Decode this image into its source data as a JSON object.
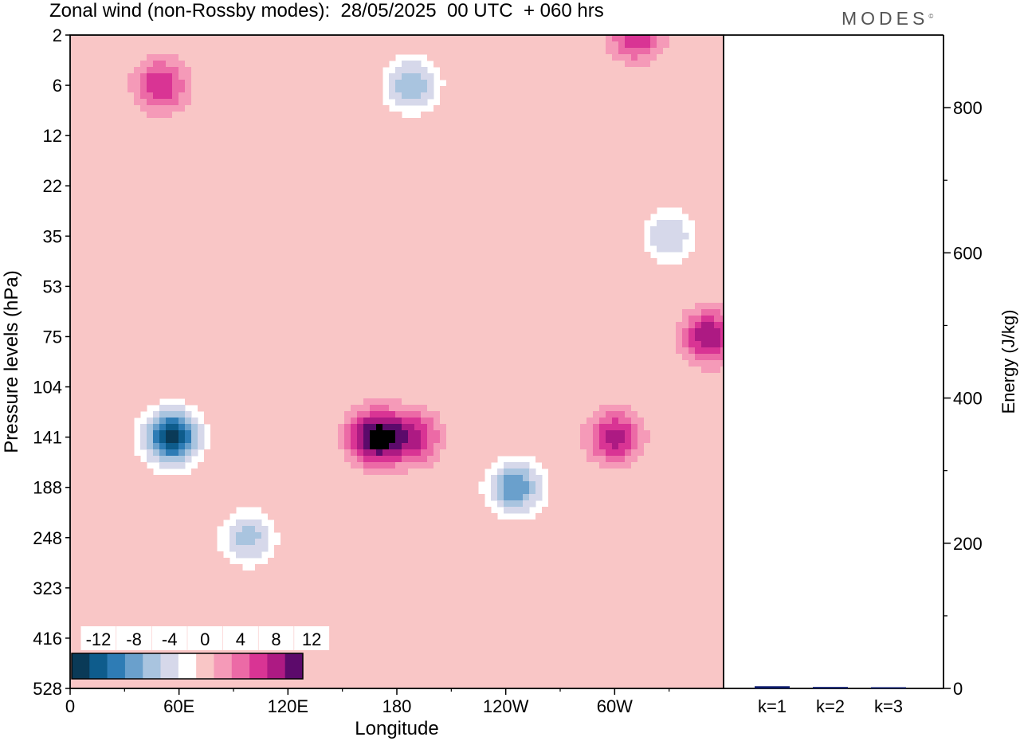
{
  "header": {
    "title": "Zonal wind (non-Rossby modes):  28/05/2025  00 UTC  + 060 hrs",
    "logo": "MODES",
    "logo_mark": "©"
  },
  "chart_data": [
    {
      "type": "heatmap",
      "title": "Zonal wind (non-Rossby modes):  28/05/2025  00 UTC  + 060 hrs",
      "xlabel": "Longitude",
      "ylabel": "Pressure levels (hPa)",
      "x_ticks": [
        "0",
        "60E",
        "120E",
        "180",
        "120W",
        "60W"
      ],
      "y_ticks": [
        "2",
        "6",
        "12",
        "22",
        "35",
        "53",
        "75",
        "104",
        "141",
        "188",
        "248",
        "323",
        "416",
        "528"
      ],
      "x_range_deg_east": [
        0,
        360
      ],
      "levels": [
        -14,
        -12,
        -10,
        -8,
        -6,
        -4,
        -2,
        2,
        4,
        6,
        8,
        10,
        12,
        14
      ],
      "colorbar": {
        "labels": [
          "-12",
          "-8",
          "-4",
          "0",
          "4",
          "8",
          "12"
        ],
        "colors": [
          "#0a3a57",
          "#0e5c8c",
          "#2e7cb5",
          "#6aa0cc",
          "#a9c4df",
          "#d6d8ea",
          "#ffffff",
          "#f9c6c6",
          "#f59ab8",
          "#ec6aa6",
          "#d93494",
          "#ad1a83",
          "#5c0a6b"
        ]
      },
      "features": [
        {
          "kind": "min",
          "lon": 56,
          "level": 141,
          "value": -15
        },
        {
          "kind": "min",
          "lon": 98,
          "level": 248,
          "value": -7
        },
        {
          "kind": "min",
          "lon": 245,
          "level": 188,
          "value": -10
        },
        {
          "kind": "max",
          "lon": 168,
          "level": 141,
          "value": 13
        },
        {
          "kind": "max",
          "lon": 190,
          "level": 141,
          "value": 8
        },
        {
          "kind": "max",
          "lon": 300,
          "level": 141,
          "value": 9
        },
        {
          "kind": "max",
          "lon": 352,
          "level": 75,
          "value": 10
        },
        {
          "kind": "max",
          "lon": 50,
          "level": 6,
          "value": 8
        },
        {
          "kind": "max",
          "lon": 312,
          "level": 2,
          "value": 8
        },
        {
          "kind": "min",
          "lon": 188,
          "level": 6,
          "value": -8
        },
        {
          "kind": "min",
          "lon": 330,
          "level": 35,
          "value": -6
        }
      ]
    },
    {
      "type": "bar",
      "categories": [
        "k=1",
        "k=2",
        "k=3"
      ],
      "values": [
        3,
        2,
        1
      ],
      "ylabel": "Energy (J/kg)",
      "y_ticks": [
        "0",
        "200",
        "400",
        "600",
        "800"
      ],
      "ylim": [
        0,
        900
      ]
    }
  ]
}
